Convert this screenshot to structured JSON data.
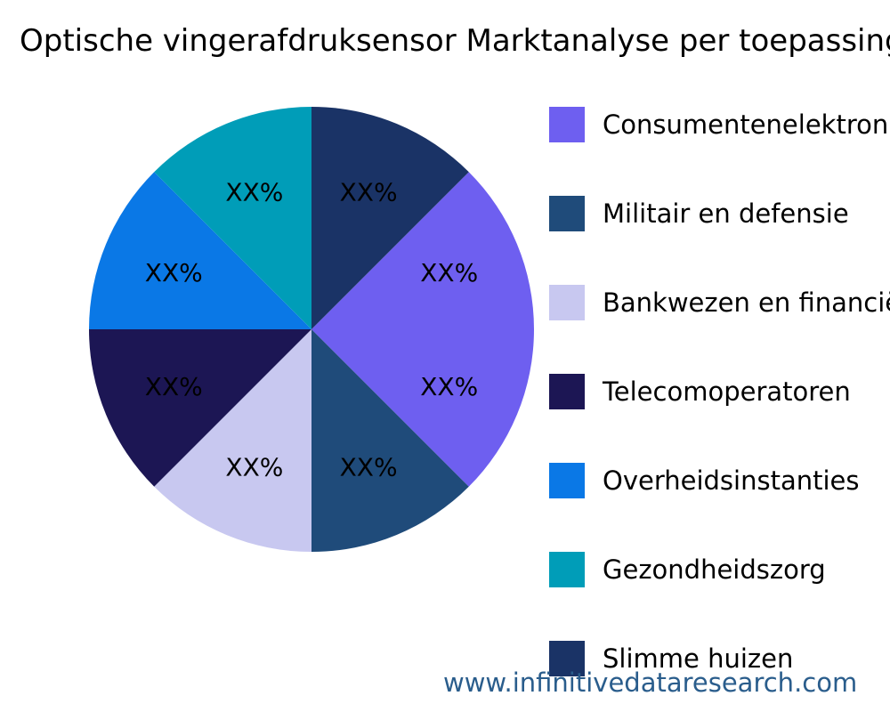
{
  "chart_data": {
    "type": "pie",
    "title": "Optische vingerafdruksensor Marktanalyse per toepassing",
    "categories": [
      "Consumentenelektronica",
      "Militair en defensie",
      "Bankwezen en financiën",
      "Telecomoperatoren",
      "Overheidsinstanties",
      "Gezondheidszorg",
      "Slimme huizen"
    ],
    "values": [
      25,
      12.5,
      12.5,
      12.5,
      12.5,
      12.5,
      12.5
    ],
    "labels": [
      "XX%",
      "XX%",
      "XX%",
      "XX%",
      "XX%",
      "XX%",
      "XX%"
    ],
    "colors": [
      "#6e5ff0",
      "#1f4b7a",
      "#c8c8f0",
      "#1c1654",
      "#0a78e6",
      "#009db8",
      "#1a3366"
    ],
    "direction": "clockwise",
    "legend": "right"
  },
  "watermark": "www.infinitivedataresearch.com"
}
